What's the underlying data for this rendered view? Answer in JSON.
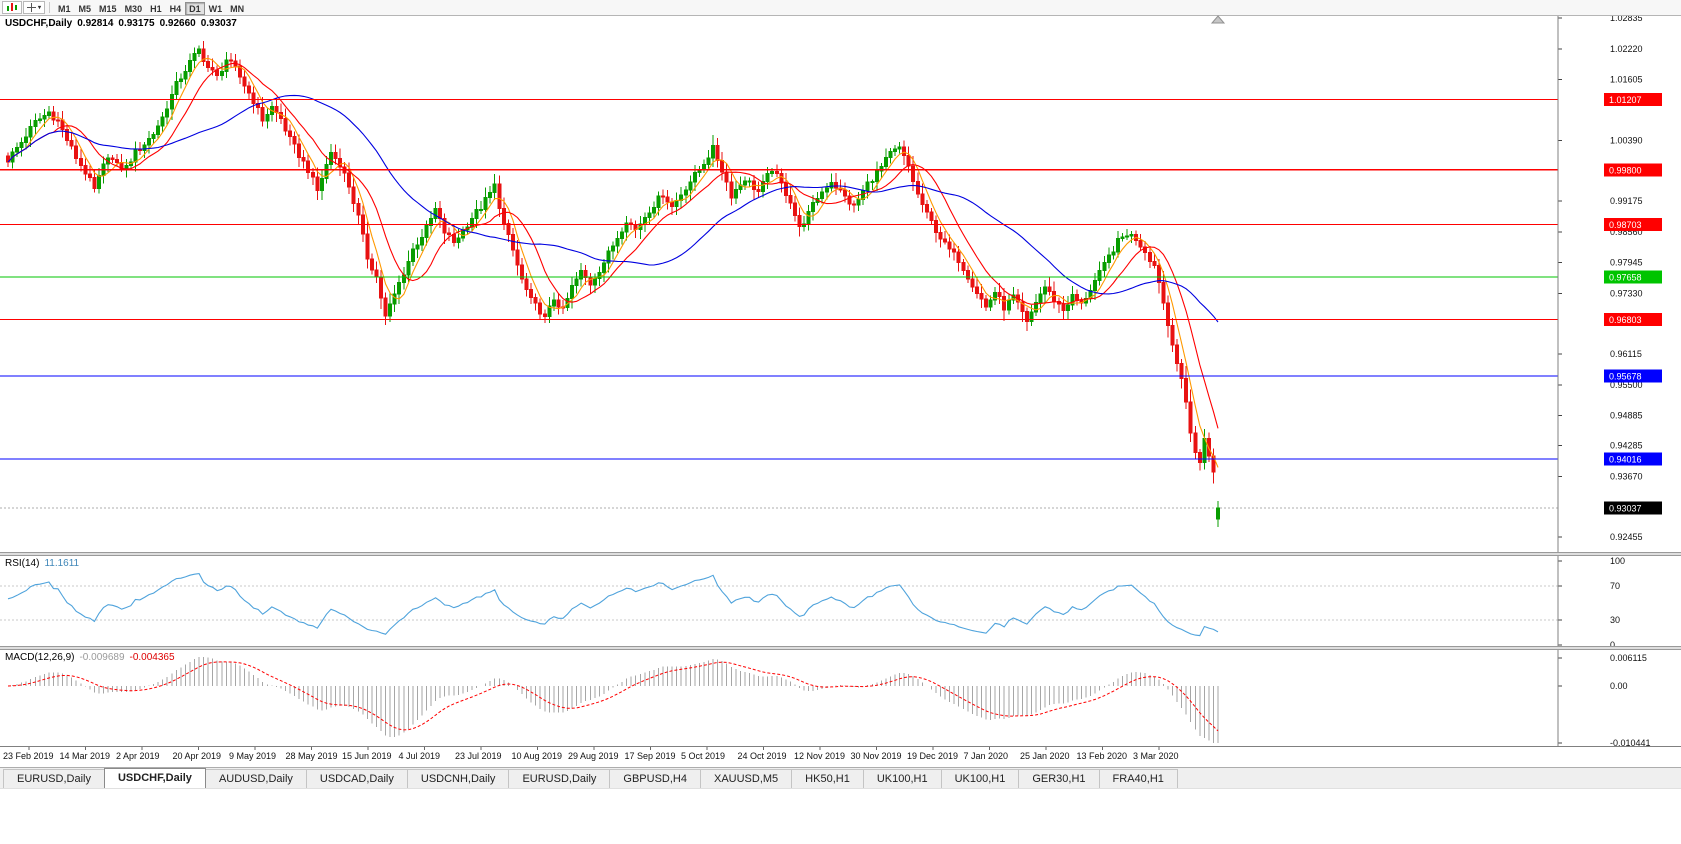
{
  "toolbar": {
    "icons": [
      "bar-chart-icon",
      "crosshair-icon"
    ],
    "timeframes": [
      "M1",
      "M5",
      "M15",
      "M30",
      "H1",
      "H4",
      "D1",
      "W1",
      "MN"
    ],
    "active_timeframe": "D1"
  },
  "quote": {
    "symbol": "USDCHF,Daily",
    "open": "0.92814",
    "high": "0.93175",
    "low": "0.92660",
    "close": "0.93037"
  },
  "indicators": {
    "rsi": {
      "label": "RSI(14)",
      "value": "11.1611"
    },
    "macd": {
      "label": "MACD(12,26,9)",
      "value_macd": "-0.009689",
      "value_signal": "-0.004365"
    }
  },
  "tabs": {
    "items": [
      "EURUSD,Daily",
      "USDCHF,Daily",
      "AUDUSD,Daily",
      "USDCAD,Daily",
      "USDCNH,Daily",
      "EURUSD,Daily",
      "GBPUSD,H4",
      "XAUUSD,M5",
      "HK50,H1",
      "UK100,H1",
      "UK100,H1",
      "GER30,H1",
      "FRA40,H1"
    ],
    "active_index": 1
  },
  "chart_data": {
    "type": "candlestick",
    "symbol": "USDCHF",
    "timeframe": "Daily",
    "last_candle": {
      "open": 0.92814,
      "high": 0.93175,
      "low": 0.9266,
      "close": 0.93037
    },
    "current_price": 0.93037,
    "price_ticks": [
      "1.02835",
      "1.02220",
      "1.01605",
      "1.00390",
      "0.99175",
      "0.98560",
      "0.97945",
      "0.97330",
      "0.96115",
      "0.95500",
      "0.94885",
      "0.94285",
      "0.93670",
      "0.92455"
    ],
    "horizontal_lines": [
      {
        "price": 1.01207,
        "color": "#FF0000"
      },
      {
        "price": 0.998,
        "color": "#FF0000"
      },
      {
        "price": 0.98703,
        "color": "#FF0000"
      },
      {
        "price": 0.97658,
        "color": "#00C400"
      },
      {
        "price": 0.96803,
        "color": "#FF0000"
      },
      {
        "price": 0.95678,
        "color": "#0000FF"
      },
      {
        "price": 0.94016,
        "color": "#0000FF"
      }
    ],
    "time_labels": [
      "23 Feb 2019",
      "14 Mar 2019",
      "2 Apr 2019",
      "20 Apr 2019",
      "9 May 2019",
      "28 May 2019",
      "15 Jun 2019",
      "4 Jul 2019",
      "23 Jul 2019",
      "10 Aug 2019",
      "29 Aug 2019",
      "17 Sep 2019",
      "5 Oct 2019",
      "24 Oct 2019",
      "12 Nov 2019",
      "30 Nov 2019",
      "19 Dec 2019",
      "7 Jan 2020",
      "25 Jan 2020",
      "13 Feb 2020",
      "3 Mar 2020"
    ],
    "candle_count": 267,
    "close_waypoints": [
      [
        0,
        1.0
      ],
      [
        3,
        1.0035
      ],
      [
        6,
        1.0075
      ],
      [
        9,
        1.0095
      ],
      [
        11,
        1.0078
      ],
      [
        13,
        1.004
      ],
      [
        15,
        1.0005
      ],
      [
        17,
        0.9975
      ],
      [
        19,
        0.994
      ],
      [
        22,
        1.001
      ],
      [
        24,
        0.9988
      ],
      [
        26,
        0.9985
      ],
      [
        28,
        1.0015
      ],
      [
        30,
        1.0032
      ],
      [
        32,
        1.0052
      ],
      [
        34,
        1.0085
      ],
      [
        37,
        1.015
      ],
      [
        40,
        1.0195
      ],
      [
        42,
        1.022
      ],
      [
        44,
        1.0185
      ],
      [
        46,
        1.0165
      ],
      [
        48,
        1.02
      ],
      [
        50,
        1.0182
      ],
      [
        52,
        1.015
      ],
      [
        54,
        1.0118
      ],
      [
        56,
        1.008
      ],
      [
        58,
        1.0105
      ],
      [
        60,
        1.0082
      ],
      [
        62,
        1.004
      ],
      [
        64,
        1.001
      ],
      [
        66,
        0.998
      ],
      [
        68,
        0.9938
      ],
      [
        71,
        1.0015
      ],
      [
        73,
        0.9992
      ],
      [
        75,
        0.9948
      ],
      [
        77,
        0.9885
      ],
      [
        79,
        0.9805
      ],
      [
        81,
        0.9765
      ],
      [
        83,
        0.9685
      ],
      [
        85,
        0.973
      ],
      [
        87,
        0.9775
      ],
      [
        89,
        0.982
      ],
      [
        92,
        0.9862
      ],
      [
        94,
        0.99
      ],
      [
        96,
        0.9856
      ],
      [
        98,
        0.9835
      ],
      [
        100,
        0.9858
      ],
      [
        102,
        0.9885
      ],
      [
        104,
        0.9905
      ],
      [
        106,
        0.9932
      ],
      [
        107,
        0.9948
      ],
      [
        109,
        0.987
      ],
      [
        111,
        0.9818
      ],
      [
        113,
        0.976
      ],
      [
        115,
        0.9718
      ],
      [
        117,
        0.9698
      ],
      [
        118,
        0.9682
      ],
      [
        120,
        0.9722
      ],
      [
        122,
        0.9698
      ],
      [
        124,
        0.9745
      ],
      [
        126,
        0.9775
      ],
      [
        128,
        0.9752
      ],
      [
        131,
        0.9795
      ],
      [
        134,
        0.9845
      ],
      [
        136,
        0.988
      ],
      [
        138,
        0.986
      ],
      [
        141,
        0.99
      ],
      [
        144,
        0.9932
      ],
      [
        146,
        0.9906
      ],
      [
        149,
        0.9945
      ],
      [
        152,
        0.998
      ],
      [
        155,
        1.0022
      ],
      [
        157,
        0.998
      ],
      [
        159,
        0.993
      ],
      [
        162,
        0.9962
      ],
      [
        165,
        0.9936
      ],
      [
        168,
        0.9982
      ],
      [
        170,
        0.995
      ],
      [
        172,
        0.9918
      ],
      [
        174,
        0.9862
      ],
      [
        176,
        0.9892
      ],
      [
        178,
        0.9925
      ],
      [
        181,
        0.9958
      ],
      [
        183,
        0.9936
      ],
      [
        186,
        0.9905
      ],
      [
        189,
        0.9952
      ],
      [
        192,
        0.9985
      ],
      [
        194,
        1.0012
      ],
      [
        196,
        1.0022
      ],
      [
        198,
        0.9986
      ],
      [
        200,
        0.993
      ],
      [
        202,
        0.989
      ],
      [
        204,
        0.986
      ],
      [
        206,
        0.983
      ],
      [
        209,
        0.98
      ],
      [
        211,
        0.9768
      ],
      [
        213,
        0.9736
      ],
      [
        215,
        0.9705
      ],
      [
        217,
        0.9736
      ],
      [
        219,
        0.9705
      ],
      [
        221,
        0.9726
      ],
      [
        223,
        0.9692
      ],
      [
        224,
        0.9672
      ],
      [
        226,
        0.9716
      ],
      [
        228,
        0.9746
      ],
      [
        230,
        0.972
      ],
      [
        232,
        0.97
      ],
      [
        234,
        0.9726
      ],
      [
        236,
        0.971
      ],
      [
        238,
        0.9742
      ],
      [
        240,
        0.9772
      ],
      [
        242,
        0.9806
      ],
      [
        244,
        0.9836
      ],
      [
        246,
        0.9852
      ],
      [
        248,
        0.9842
      ],
      [
        250,
        0.9818
      ],
      [
        252,
        0.9788
      ],
      [
        253,
        0.9758
      ],
      [
        254,
        0.9714
      ],
      [
        255,
        0.967
      ],
      [
        256,
        0.9636
      ],
      [
        257,
        0.9594
      ],
      [
        258,
        0.9556
      ],
      [
        259,
        0.9514
      ],
      [
        260,
        0.9458
      ],
      [
        261,
        0.9415
      ],
      [
        262,
        0.9392
      ],
      [
        263,
        0.9444
      ],
      [
        264,
        0.9412
      ],
      [
        265,
        0.9372
      ],
      [
        266,
        0.93037
      ]
    ],
    "moving_averages": [
      {
        "period": 5,
        "color": "#FF9900"
      },
      {
        "period": 11,
        "color": "#FF0000"
      },
      {
        "period": 34,
        "color": "#0000E0"
      }
    ],
    "rsi": {
      "period": 14,
      "current": 11.1611,
      "levels": [
        70,
        30
      ],
      "scale": [
        100,
        70,
        30,
        0
      ],
      "color": "#4FA3DC"
    },
    "macd": {
      "fast": 12,
      "slow": 26,
      "signal": 9,
      "current_macd": -0.009689,
      "current_signal": -0.004365,
      "scale_labels": [
        "0.006115",
        "0.00",
        "-0.010441"
      ],
      "histogram_color": "#A6A6A6",
      "signal_color": "#FF0000"
    },
    "colors": {
      "bull": "#089d00",
      "bear": "#E81212",
      "background": "#FFFFFF",
      "foreground": "#000000"
    },
    "price_range_visible": [
      0.92135,
      1.02875
    ]
  }
}
